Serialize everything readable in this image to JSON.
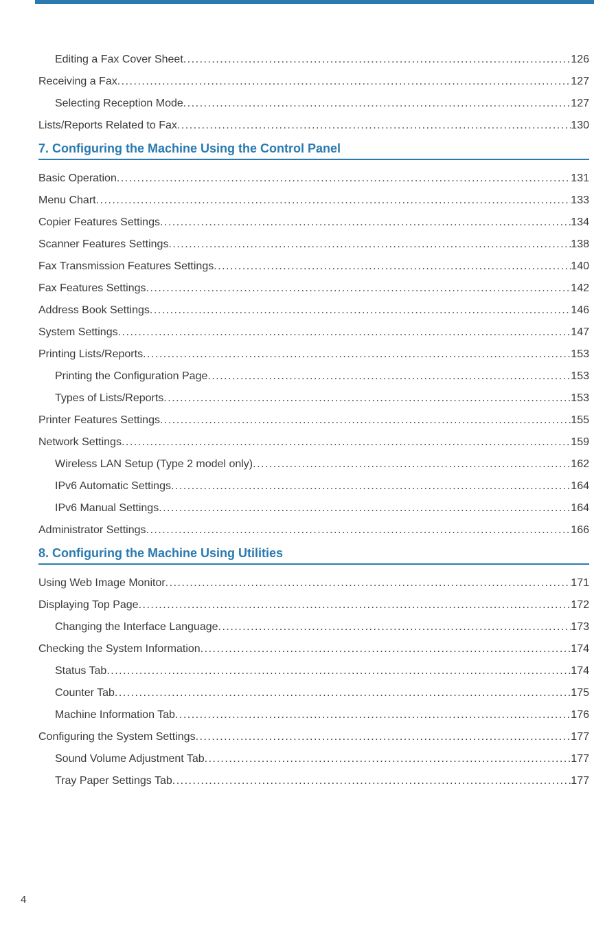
{
  "colors": {
    "accent": "#2a7ab0",
    "text": "#3a3a3a",
    "background": "#ffffff"
  },
  "typography": {
    "body_fontsize_pt": 12,
    "heading_fontsize_pt": 14,
    "font_family": "Arial"
  },
  "page_number": "4",
  "toc": [
    {
      "type": "entry",
      "title": "Editing a Fax Cover Sheet",
      "page": "126",
      "indent": 1
    },
    {
      "type": "entry",
      "title": "Receiving a Fax",
      "page": "127",
      "indent": 0
    },
    {
      "type": "entry",
      "title": "Selecting Reception Mode",
      "page": "127",
      "indent": 1
    },
    {
      "type": "entry",
      "title": "Lists/Reports Related to Fax",
      "page": "130",
      "indent": 0
    },
    {
      "type": "heading",
      "title": "7. Configuring the Machine Using the Control Panel"
    },
    {
      "type": "entry",
      "title": "Basic Operation",
      "page": "131",
      "indent": 0
    },
    {
      "type": "entry",
      "title": "Menu Chart",
      "page": "133",
      "indent": 0
    },
    {
      "type": "entry",
      "title": "Copier Features Settings",
      "page": "134",
      "indent": 0
    },
    {
      "type": "entry",
      "title": "Scanner Features Settings",
      "page": "138",
      "indent": 0
    },
    {
      "type": "entry",
      "title": "Fax Transmission Features Settings",
      "page": "140",
      "indent": 0
    },
    {
      "type": "entry",
      "title": "Fax Features Settings",
      "page": "142",
      "indent": 0
    },
    {
      "type": "entry",
      "title": "Address Book Settings",
      "page": "146",
      "indent": 0
    },
    {
      "type": "entry",
      "title": "System Settings",
      "page": "147",
      "indent": 0
    },
    {
      "type": "entry",
      "title": "Printing Lists/Reports",
      "page": "153",
      "indent": 0
    },
    {
      "type": "entry",
      "title": "Printing the Configuration Page",
      "page": "153",
      "indent": 1
    },
    {
      "type": "entry",
      "title": "Types of Lists/Reports",
      "page": "153",
      "indent": 1
    },
    {
      "type": "entry",
      "title": "Printer Features Settings",
      "page": "155",
      "indent": 0
    },
    {
      "type": "entry",
      "title": "Network Settings",
      "page": "159",
      "indent": 0
    },
    {
      "type": "entry",
      "title": "Wireless LAN Setup (Type 2 model only)",
      "page": "162",
      "indent": 1
    },
    {
      "type": "entry",
      "title": "IPv6 Automatic Settings",
      "page": "164",
      "indent": 1
    },
    {
      "type": "entry",
      "title": "IPv6 Manual Settings",
      "page": "164",
      "indent": 1
    },
    {
      "type": "entry",
      "title": "Administrator Settings",
      "page": "166",
      "indent": 0
    },
    {
      "type": "heading",
      "title": "8. Configuring the Machine Using Utilities"
    },
    {
      "type": "entry",
      "title": "Using Web Image Monitor",
      "page": "171",
      "indent": 0
    },
    {
      "type": "entry",
      "title": "Displaying Top Page",
      "page": "172",
      "indent": 0
    },
    {
      "type": "entry",
      "title": "Changing the Interface Language",
      "page": "173",
      "indent": 1
    },
    {
      "type": "entry",
      "title": "Checking the System Information",
      "page": "174",
      "indent": 0
    },
    {
      "type": "entry",
      "title": "Status Tab",
      "page": "174",
      "indent": 1
    },
    {
      "type": "entry",
      "title": "Counter Tab",
      "page": "175",
      "indent": 1
    },
    {
      "type": "entry",
      "title": "Machine Information Tab",
      "page": "176",
      "indent": 1
    },
    {
      "type": "entry",
      "title": "Configuring the System Settings",
      "page": "177",
      "indent": 0
    },
    {
      "type": "entry",
      "title": "Sound Volume Adjustment Tab",
      "page": "177",
      "indent": 1
    },
    {
      "type": "entry",
      "title": "Tray Paper Settings Tab",
      "page": "177",
      "indent": 1
    }
  ]
}
